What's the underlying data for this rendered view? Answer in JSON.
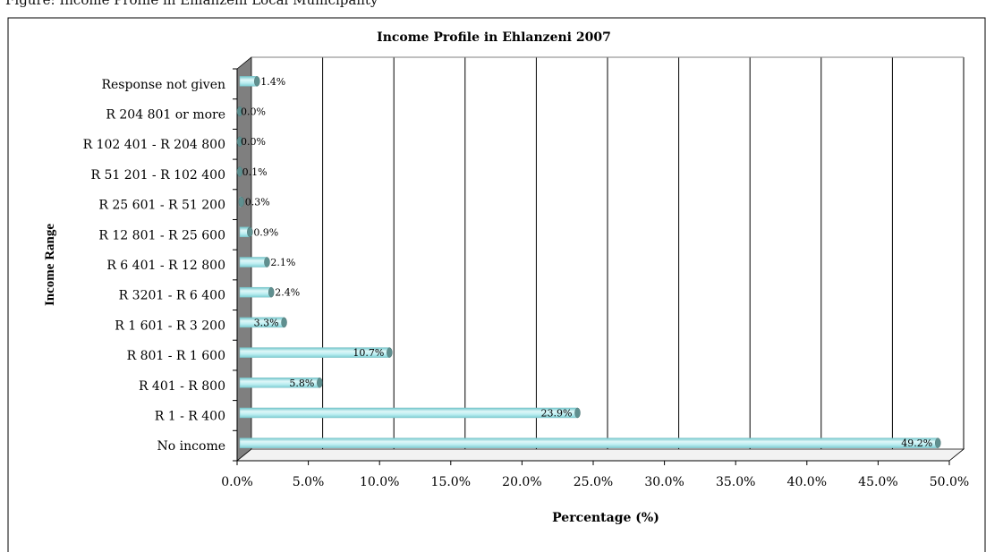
{
  "figure_caption": "Figure: Income Profile in Ehlanzeni Local Municipality",
  "chart_data": {
    "type": "bar",
    "orientation": "horizontal",
    "title": "Income Profile in Ehlanzeni 2007",
    "xlabel": "Percentage (%)",
    "ylabel": "Income Range",
    "categories": [
      "No income",
      "R 1 - R 400",
      "R 401 - R 800",
      "R 801 - R 1 600",
      "R 1 601 - R 3 200",
      "R 3201 - R 6 400",
      "R 6 401 - R 12 800",
      "R 12 801 - R 25 600",
      "R 25 601 - R 51 200",
      "R 51 201 - R 102 400",
      "R 102 401 - R 204 800",
      "R 204 801 or more",
      "Response not given"
    ],
    "values": [
      49.2,
      23.9,
      5.8,
      10.7,
      3.3,
      2.4,
      2.1,
      0.9,
      0.3,
      0.1,
      0.0,
      0.0,
      1.4
    ],
    "data_labels": [
      "49.2%",
      "23.9%",
      "5.8%",
      "10.7%",
      "3.3%",
      "2.4%",
      "2.1%",
      "0.9%",
      "0.3%",
      "0.1%",
      "0.0%",
      "0.0%",
      "1.4%"
    ],
    "xlim": [
      0,
      50
    ],
    "xticks": [
      "0.0%",
      "5.0%",
      "10.0%",
      "15.0%",
      "20.0%",
      "25.0%",
      "30.0%",
      "35.0%",
      "40.0%",
      "45.0%",
      "50.0%"
    ],
    "grid": "vertical",
    "legend": "none",
    "bar_style": "3d cylinder",
    "colors": {
      "bar_light": "#dff7f8",
      "bar_mid": "#a8e4e8",
      "bar_dark": "#6fc6cc",
      "bar_cap": "#5f8f8f",
      "wall": "#7f7f7f",
      "grid": "#000000"
    }
  }
}
